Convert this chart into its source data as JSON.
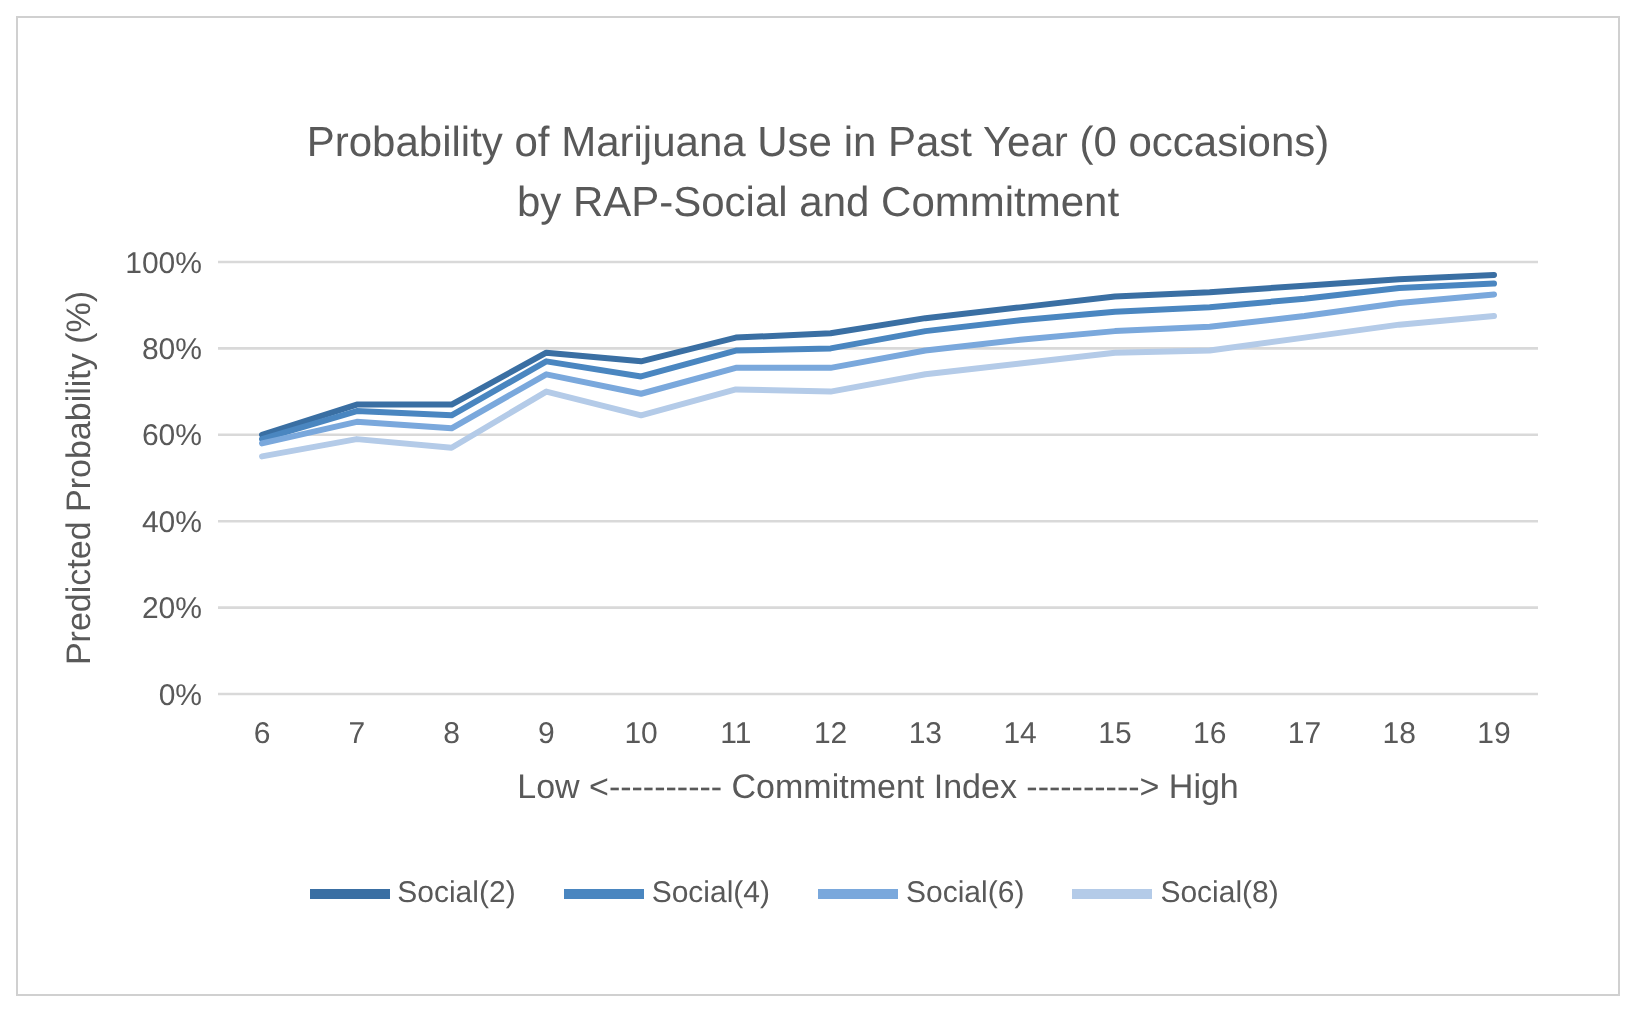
{
  "chart_data": {
    "type": "line",
    "title": "Probability of Marijuana Use in Past Year (0 occasions)\nby RAP-Social and Commitment",
    "xlabel": "Low <---------- Commitment Index ----------> High",
    "ylabel": "Predicted Probability (%)",
    "categories": [
      "6",
      "7",
      "8",
      "9",
      "10",
      "11",
      "12",
      "13",
      "14",
      "15",
      "16",
      "17",
      "18",
      "19"
    ],
    "series": [
      {
        "name": "Social(2)",
        "color": "#3a6fa3",
        "values": [
          60,
          67,
          67,
          79,
          77,
          82.5,
          83.5,
          87,
          89.5,
          92,
          93,
          94.5,
          96,
          97
        ]
      },
      {
        "name": "Social(4)",
        "color": "#4a86c0",
        "values": [
          59,
          65.5,
          64.5,
          77,
          73.5,
          79.5,
          80,
          84,
          86.5,
          88.5,
          89.5,
          91.5,
          94,
          95
        ]
      },
      {
        "name": "Social(6)",
        "color": "#7aa8dc",
        "values": [
          58,
          63,
          61.5,
          74,
          69.5,
          75.5,
          75.5,
          79.5,
          82,
          84,
          85,
          87.5,
          90.5,
          92.5
        ]
      },
      {
        "name": "Social(8)",
        "color": "#b4cbe8",
        "values": [
          55,
          59,
          57,
          70,
          64.5,
          70.5,
          70,
          74,
          76.5,
          79,
          79.5,
          82.5,
          85.5,
          87.5
        ]
      }
    ],
    "ylim": [
      0,
      100
    ],
    "yticks": [
      {
        "value": 0,
        "label": "0%"
      },
      {
        "value": 20,
        "label": "20%"
      },
      {
        "value": 40,
        "label": "40%"
      },
      {
        "value": 60,
        "label": "60%"
      },
      {
        "value": 80,
        "label": "80%"
      },
      {
        "value": 100,
        "label": "100%"
      }
    ],
    "grid": "y",
    "legend": "bottom",
    "marker": "none",
    "line_style": "solid"
  }
}
